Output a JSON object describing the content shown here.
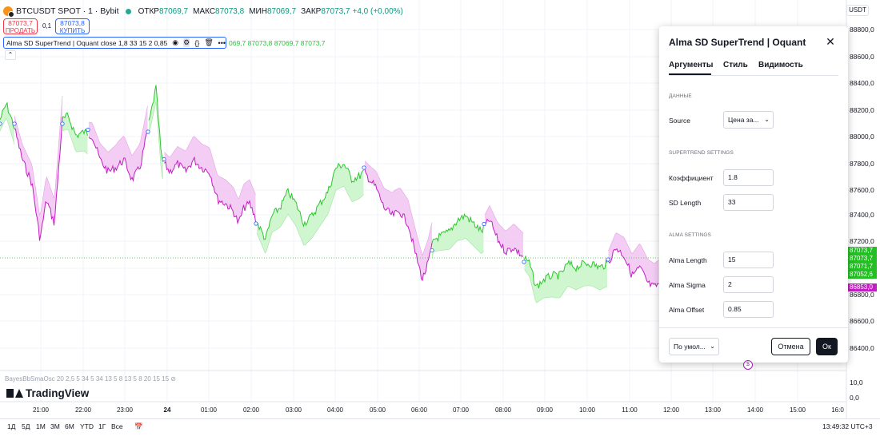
{
  "legend": {
    "symbol": "BTCUSDT SPOT · 1 · Bybit",
    "open_label": "ОТКР",
    "open": "87069,7",
    "high_label": "МАКС",
    "high": "87073,8",
    "low_label": "МИН",
    "low": "87069,7",
    "close_label": "ЗАКР",
    "close": "87073,7",
    "change": "+4,0 (+0,00%)"
  },
  "trade": {
    "sell_price": "87073,7",
    "sell_label": "ПРОДАТЬ",
    "spread": "0,1",
    "buy_price": "87073,8",
    "buy_label": "КУПИТЬ"
  },
  "indicator": {
    "text": "Alma SD SuperTrend | Oquant close 1,8 33 15 2 0,85",
    "values": "069,7 87073,8 87069,7 87073,7",
    "icons": [
      "eye-icon",
      "settings-icon",
      "code-icon",
      "trash-icon",
      "more-icon"
    ]
  },
  "currency": "USDT",
  "price_axis": [
    "88800,0",
    "88600,0",
    "88400,0",
    "88200,0",
    "88000,0",
    "87800,0",
    "87600,0",
    "87400,0",
    "87200,0",
    "86800,0",
    "86600,0",
    "86400,0"
  ],
  "price_badges": [
    {
      "text": "87073,7",
      "color": "#22c022"
    },
    {
      "text": "87073,7",
      "color": "#22c022"
    },
    {
      "text": "87071,7",
      "color": "#22c022"
    },
    {
      "text": "87052,6",
      "color": "#22c022"
    },
    {
      "text": "86853,0",
      "color": "#c21ec2"
    }
  ],
  "oscillator": {
    "legend": "BayesBbSmaOsc 20 2,5 5 34 5 34 13 5 8 13 5 8 20 15 15",
    "axis": [
      "10,0",
      "0,0"
    ]
  },
  "brand": "TradingView",
  "time_axis": [
    "21:00",
    "22:00",
    "23:00",
    "24",
    "01:00",
    "02:00",
    "03:00",
    "04:00",
    "05:00",
    "06:00",
    "07:00",
    "08:00",
    "09:00",
    "10:00",
    "11:00",
    "12:00",
    "13:00",
    "14:00",
    "15:00",
    "16:0"
  ],
  "ranges": [
    "1Д",
    "5Д",
    "1М",
    "3М",
    "6М",
    "YTD",
    "1Г",
    "Все"
  ],
  "clock": "13:49:32 UTC+3",
  "dialog": {
    "title": "Alma SD SuperTrend | Oquant",
    "tabs": [
      "Аргументы",
      "Стиль",
      "Видимость"
    ],
    "section_data": "ДАННЫЕ",
    "source_label": "Source",
    "source_value": "Цена за...",
    "section_supertrend": "SUPERTREND SETTINGS",
    "coef_label": "Коэффициент",
    "coef_value": "1.8",
    "sdlen_label": "SD Length",
    "sdlen_value": "33",
    "section_alma": "ALMA SETTINGS",
    "almalen_label": "Alma Length",
    "almalen_value": "15",
    "almasigma_label": "Alma Sigma",
    "almasigma_value": "2",
    "almaoffset_label": "Alma Offset",
    "almaoffset_value": "0.85",
    "defaults": "По умол...",
    "cancel": "Отмена",
    "ok": "Ок"
  },
  "colors": {
    "up": "#2fc52f",
    "down": "#c21ec2",
    "up_fill": "#c8f5c8",
    "down_fill": "#f2c4f2"
  }
}
